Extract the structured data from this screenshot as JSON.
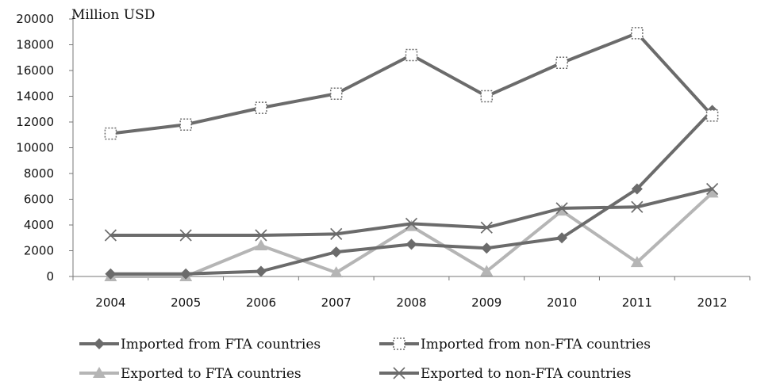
{
  "chart_data": {
    "type": "line",
    "ylabel": "Million USD",
    "categories": [
      "2004",
      "2005",
      "2006",
      "2007",
      "2008",
      "2009",
      "2010",
      "2011",
      "2012"
    ],
    "ylim": [
      0,
      20000
    ],
    "yticks": [
      0,
      2000,
      4000,
      6000,
      8000,
      10000,
      12000,
      14000,
      16000,
      18000,
      20000
    ],
    "grid": false,
    "legend_position": "bottom",
    "series": [
      {
        "name": "Imported from FTA countries",
        "marker": "diamond",
        "color": "#6b6b6b",
        "values": [
          200,
          200,
          400,
          1900,
          2500,
          2200,
          3000,
          6800,
          12900
        ]
      },
      {
        "name": "Imported from non-FTA countries",
        "marker": "square-open",
        "color": "#6b6b6b",
        "values": [
          11100,
          11800,
          13100,
          14200,
          17200,
          14000,
          16600,
          18900,
          12500
        ]
      },
      {
        "name": "Exported to FTA countries",
        "marker": "triangle",
        "color": "#b5b5b5",
        "values": [
          0,
          0,
          2400,
          300,
          3900,
          400,
          5100,
          1100,
          6500
        ]
      },
      {
        "name": "Exported to non-FTA countries",
        "marker": "x",
        "color": "#6b6b6b",
        "values": [
          3200,
          3200,
          3200,
          3300,
          4100,
          3800,
          5300,
          5400,
          6800
        ]
      }
    ]
  }
}
